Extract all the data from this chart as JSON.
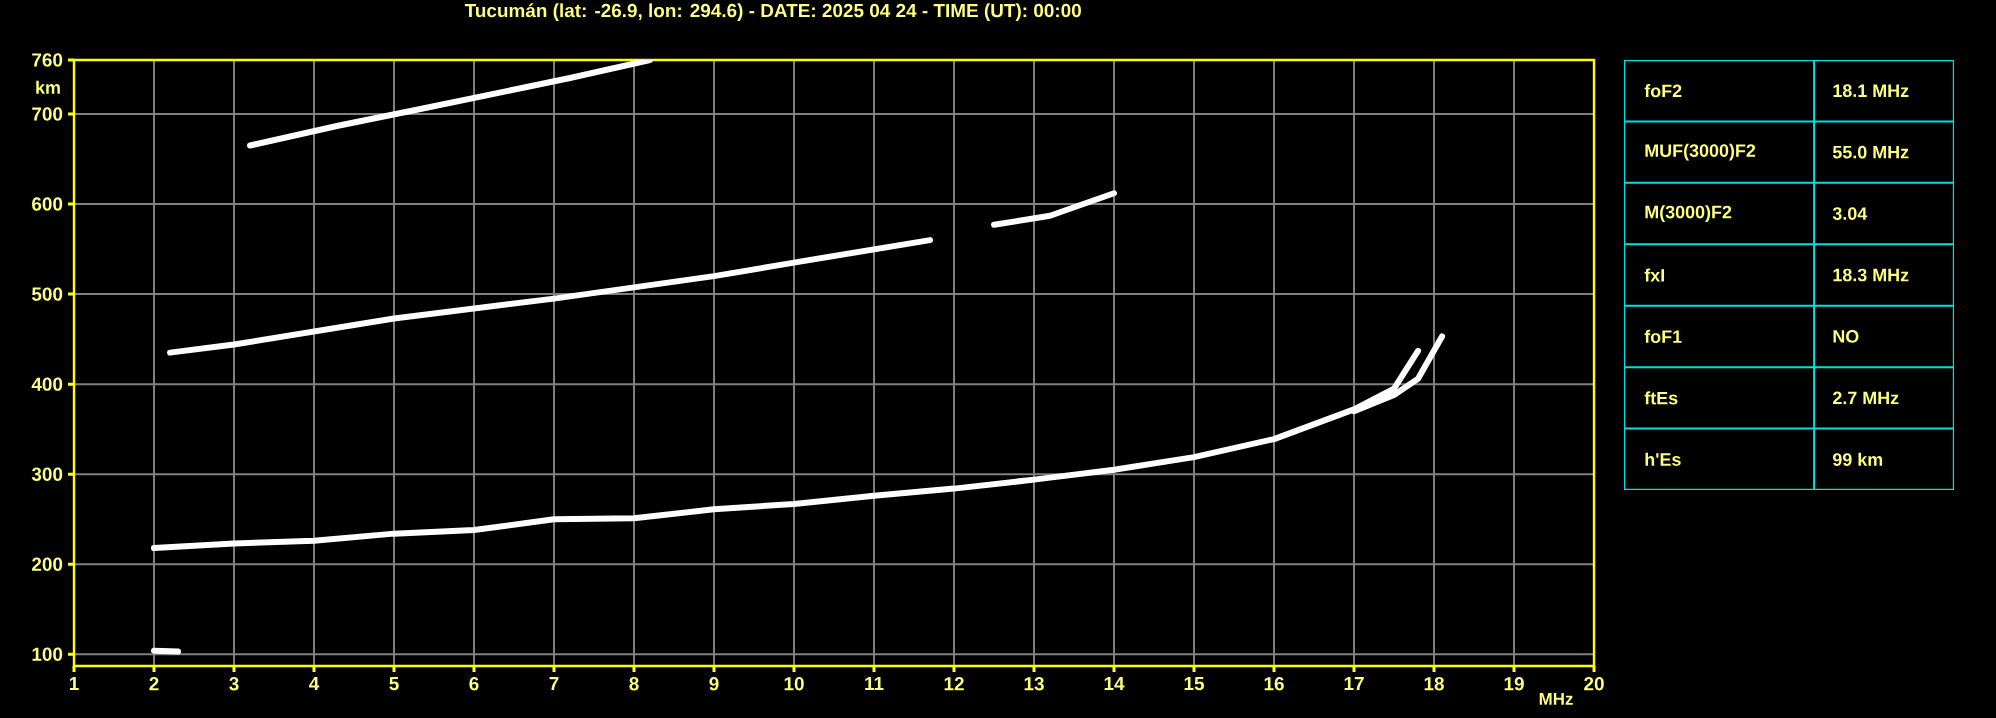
{
  "chart_data": [
    {
      "type": "line",
      "title": "Tucumán (lat: -26.9, lon: 294.6) - DATE: 2025 04 24 - TIME (UT): 00:00",
      "xlabel": "MHz",
      "ylabel": "km",
      "xlim": [
        1,
        20
      ],
      "ylim": [
        87,
        760
      ],
      "xticks": [
        1,
        2,
        3,
        4,
        5,
        6,
        7,
        8,
        9,
        10,
        11,
        12,
        13,
        14,
        15,
        16,
        17,
        18,
        19,
        20
      ],
      "yticks": [
        100,
        200,
        300,
        400,
        500,
        600,
        700,
        760
      ],
      "grid": true,
      "series": [
        {
          "color": "#ffffff",
          "x": [
            2.0,
            3,
            4,
            5,
            6,
            7,
            8,
            9,
            10,
            11,
            12,
            13,
            14,
            15,
            16,
            17,
            17.5,
            17.8
          ],
          "values": [
            218,
            223,
            226,
            234,
            238,
            250,
            251,
            261,
            267,
            276,
            284,
            294,
            305,
            319,
            339,
            372,
            395,
            437
          ]
        },
        {
          "color": "#ffffff",
          "x": [
            17.0,
            17.5,
            17.8,
            18.1
          ],
          "values": [
            370,
            388,
            406,
            453
          ]
        },
        {
          "color": "#ffffff",
          "x": [
            2.2,
            3,
            5,
            7,
            9,
            10,
            11.7,
            12.1,
            12.5,
            13.2,
            14.0
          ],
          "values": [
            435,
            444,
            473,
            495,
            520,
            535,
            560,
            null,
            577,
            587,
            612
          ]
        },
        {
          "color": "#ffffff",
          "x": [
            3.2,
            4.3,
            5.3,
            7.2,
            8.2
          ],
          "values": [
            665,
            687,
            705,
            740,
            760
          ]
        },
        {
          "color": "#ffffff",
          "x": [
            2.0,
            2.3
          ],
          "values": [
            104,
            103
          ]
        }
      ]
    },
    {
      "type": "other",
      "annotations": [
        "foF2",
        "18.1 MHz",
        "MUF(3000)F2",
        "55.0 MHz",
        "M(3000)F2",
        "3.04",
        "fxI",
        "18.3 MHz",
        "foF1",
        "NO",
        "ftEs",
        "2.7 MHz",
        "h'Es",
        "99 km"
      ]
    }
  ]
}
